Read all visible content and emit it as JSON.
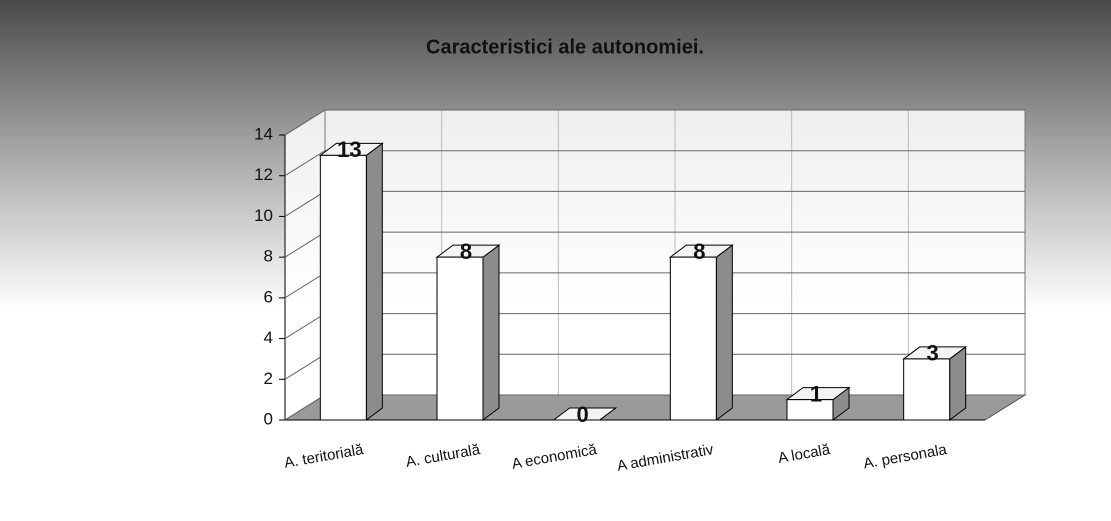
{
  "chart_data": {
    "type": "bar3d",
    "title": "Caracteristici ale autonomiei.",
    "categories": [
      "A. teritorială",
      "A. culturală",
      "A economică",
      "A administrativ",
      "A locală",
      "A. personala"
    ],
    "values": [
      13,
      8,
      0,
      8,
      1,
      3
    ],
    "color": "#ffffff",
    "ylim": [
      0,
      14
    ],
    "yticks": [
      0,
      2,
      4,
      6,
      8,
      10,
      12,
      14
    ],
    "grid": true
  }
}
